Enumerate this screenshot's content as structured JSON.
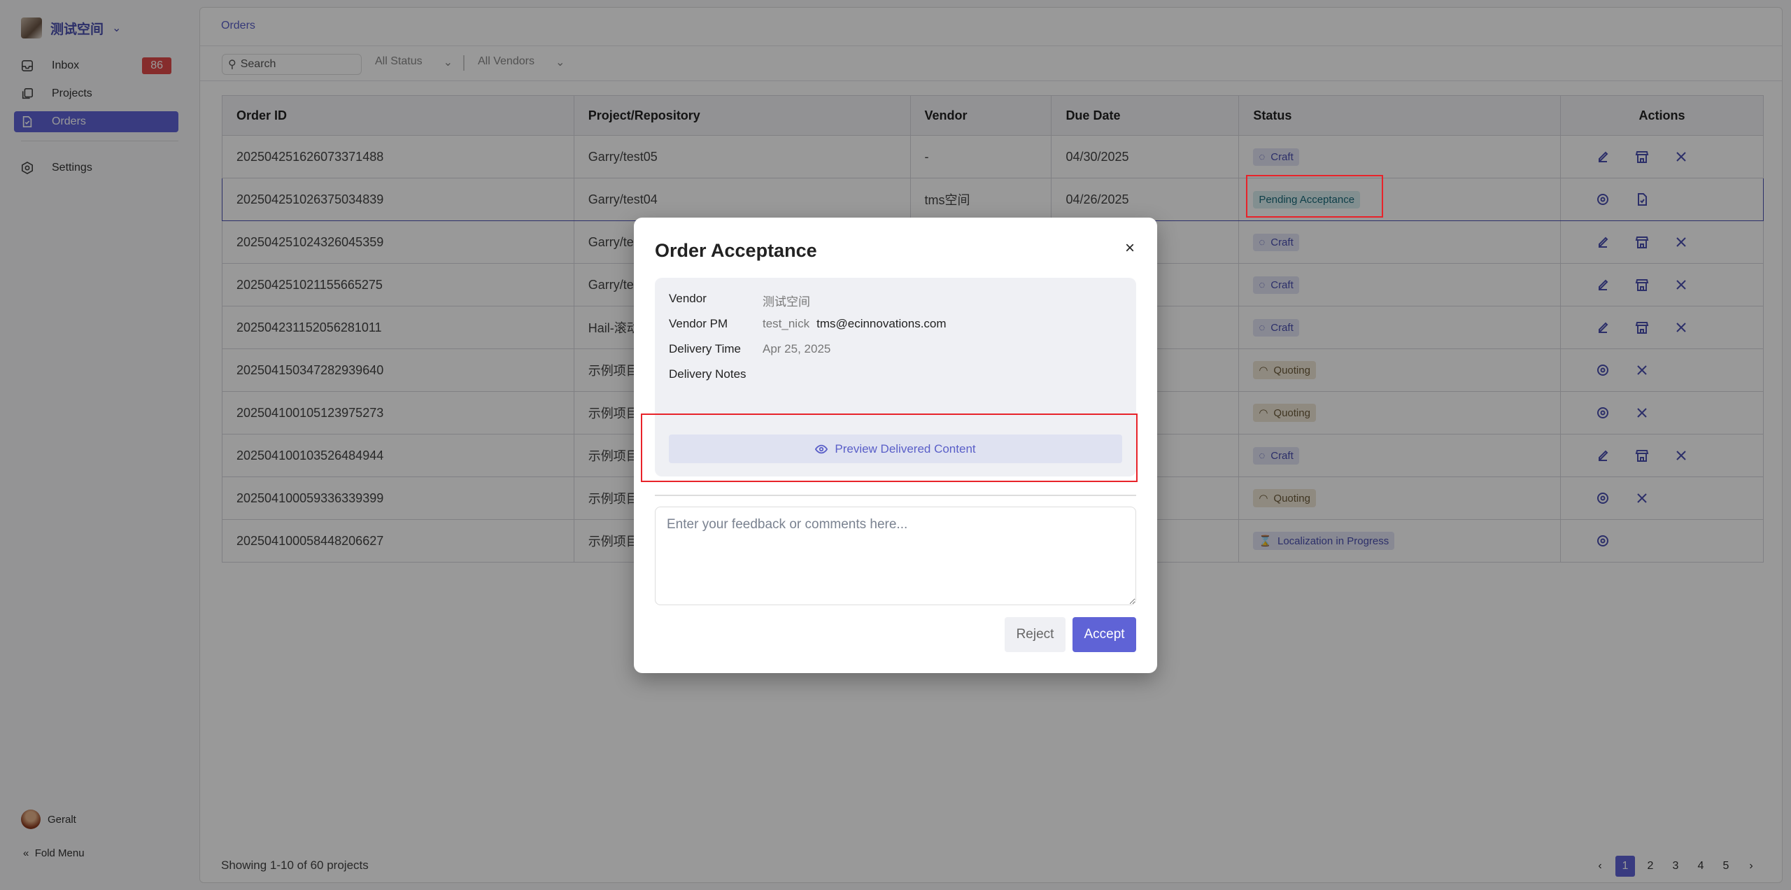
{
  "sidebar": {
    "workspace": "测试空间",
    "items": [
      {
        "label": "Inbox",
        "badge": "86"
      },
      {
        "label": "Projects"
      },
      {
        "label": "Orders"
      },
      {
        "label": "Settings"
      }
    ],
    "user": "Geralt",
    "fold": "Fold Menu"
  },
  "main": {
    "breadcrumb": "Orders",
    "search_placeholder": "Search",
    "status_filter": "All Status",
    "vendor_filter": "All Vendors",
    "columns": [
      "Order ID",
      "Project/Repository",
      "Vendor",
      "Due Date",
      "Status",
      "Actions"
    ],
    "rows": [
      {
        "id": "202504251626073371488",
        "project": "Garry/test05",
        "vendor": "-",
        "due": "04/30/2025",
        "status": "Craft",
        "kind": "craft",
        "actions": [
          "edit",
          "store",
          "close"
        ]
      },
      {
        "id": "202504251026375034839",
        "project": "Garry/test04",
        "vendor": "tms空间",
        "due": "04/26/2025",
        "status": "Pending Acceptance",
        "kind": "pending",
        "actions": [
          "eye",
          "file-check"
        ]
      },
      {
        "id": "202504251024326045359",
        "project": "Garry/te",
        "vendor": "",
        "due": "",
        "status": "Craft",
        "kind": "craft",
        "actions": [
          "edit",
          "store",
          "close"
        ]
      },
      {
        "id": "202504251021155665275",
        "project": "Garry/te",
        "vendor": "",
        "due": "",
        "status": "Craft",
        "kind": "craft",
        "actions": [
          "edit",
          "store",
          "close"
        ]
      },
      {
        "id": "202504231152056281011",
        "project": "Hail-滚动",
        "vendor": "",
        "due": "",
        "status": "Craft",
        "kind": "craft",
        "actions": [
          "edit",
          "store",
          "close"
        ]
      },
      {
        "id": "202504150347282939640",
        "project": "示例项目",
        "vendor": "",
        "due": "",
        "status": "Quoting",
        "kind": "quoting",
        "actions": [
          "eye",
          "close"
        ]
      },
      {
        "id": "202504100105123975273",
        "project": "示例项目",
        "vendor": "",
        "due": "",
        "status": "Quoting",
        "kind": "quoting",
        "actions": [
          "eye",
          "close"
        ]
      },
      {
        "id": "202504100103526484944",
        "project": "示例项目",
        "vendor": "",
        "due": "",
        "status": "Craft",
        "kind": "craft",
        "actions": [
          "edit",
          "store",
          "close"
        ]
      },
      {
        "id": "202504100059336339399",
        "project": "示例项目",
        "vendor": "",
        "due": "",
        "status": "Quoting",
        "kind": "quoting",
        "actions": [
          "eye",
          "close"
        ]
      },
      {
        "id": "202504100058448206627",
        "project": "示例项目",
        "vendor": "",
        "due": "",
        "status": "Localization in Progress",
        "kind": "loc",
        "actions": [
          "eye"
        ]
      }
    ],
    "showing": "Showing 1-10 of 60 projects",
    "pages": [
      "1",
      "2",
      "3",
      "4",
      "5"
    ],
    "current_page": "1"
  },
  "modal": {
    "title": "Order Acceptance",
    "close": "×",
    "vendor_label": "Vendor",
    "vendor": "测试空间",
    "pm_label": "Vendor PM",
    "pm_name": "test_nick",
    "pm_email": "tms@ecinnovations.com",
    "time_label": "Delivery Time",
    "time": "Apr 25, 2025",
    "notes_label": "Delivery Notes",
    "preview": "Preview Delivered Content",
    "feedback_placeholder": "Enter your feedback or comments here...",
    "reject": "Reject",
    "accept": "Accept"
  },
  "colors": {
    "accent": "#5f63d6",
    "highlight": "#e8232a"
  }
}
